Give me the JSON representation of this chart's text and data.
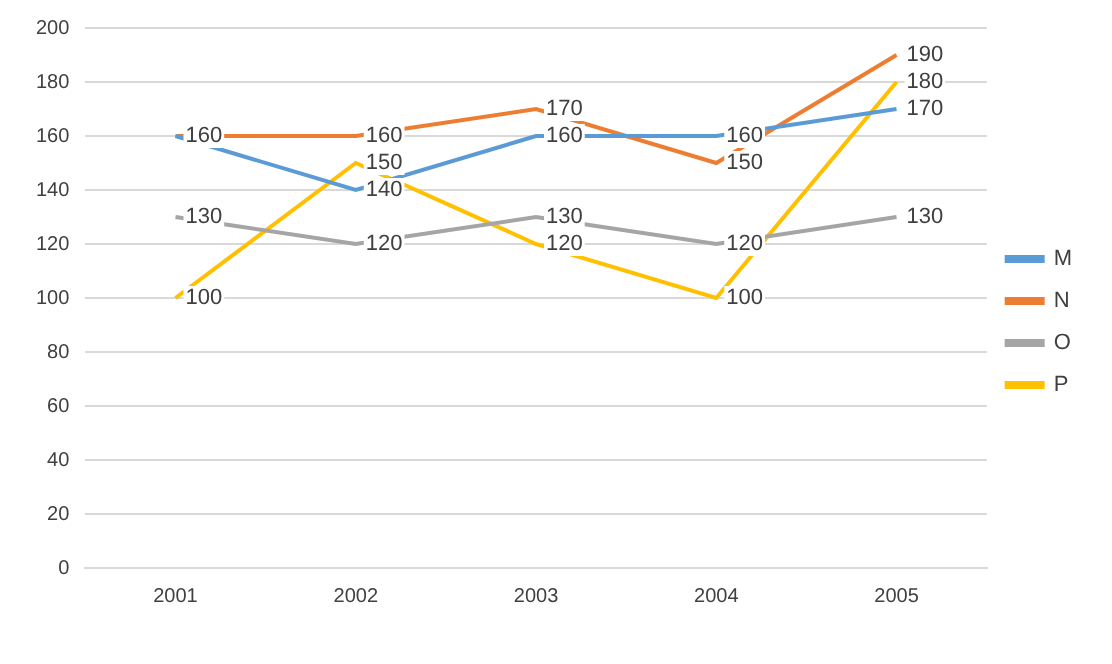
{
  "chart_data": {
    "type": "line",
    "categories": [
      "2001",
      "2002",
      "2003",
      "2004",
      "2005"
    ],
    "series": [
      {
        "name": "M",
        "color": "#5b9bd5",
        "values": [
          160,
          140,
          160,
          160,
          170
        ],
        "value_labels": [
          "160",
          "140",
          "160",
          "160",
          "170"
        ]
      },
      {
        "name": "N",
        "color": "#ed7d31",
        "values": [
          160,
          160,
          170,
          150,
          190
        ],
        "value_labels": [
          null,
          "160",
          "170",
          "150",
          "190"
        ]
      },
      {
        "name": "O",
        "color": "#a5a5a5",
        "values": [
          130,
          120,
          130,
          120,
          130
        ],
        "value_labels": [
          "130",
          "120",
          "130",
          "120",
          "130"
        ]
      },
      {
        "name": "P",
        "color": "#ffc000",
        "values": [
          100,
          150,
          120,
          100,
          180
        ],
        "value_labels": [
          "100",
          "150",
          "120",
          "100",
          "180"
        ]
      }
    ],
    "ylim": [
      0,
      200
    ],
    "yticks": [
      0,
      20,
      40,
      60,
      80,
      100,
      120,
      140,
      160,
      180,
      200
    ],
    "grid": "y",
    "legend": "right",
    "marker": "none"
  }
}
